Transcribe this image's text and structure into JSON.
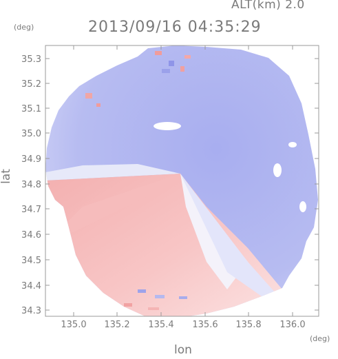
{
  "header": {
    "altitude": "ALT(km)  2.0",
    "timestamp": "2013/09/16 04:35:29"
  },
  "axes": {
    "y_unit": "(deg)",
    "x_unit": "(deg)",
    "y_label": "lat",
    "x_label": "lon",
    "x_ticks": [
      "135.0",
      "135.2",
      "135.4",
      "135.6",
      "135.8",
      "136.0"
    ],
    "y_ticks": [
      "35.3",
      "35.2",
      "35.1",
      "35.0",
      "34.9",
      "34.8",
      "34.7",
      "34.6",
      "34.5",
      "34.4",
      "34.3"
    ]
  },
  "colors": {
    "receding": "#f6b2b2",
    "approaching": "#aeb4ee",
    "neutral": "#f4f4fb",
    "frame": "#9a9a9a",
    "text": "#7a7a7a"
  }
}
